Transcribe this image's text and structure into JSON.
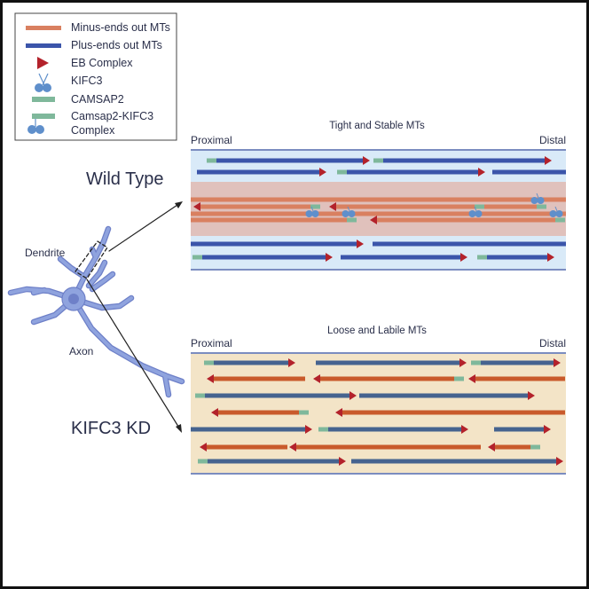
{
  "legend": {
    "items": [
      {
        "label": "Minus-ends out MTs",
        "icon": "minus-end-mt-bar"
      },
      {
        "label": "Plus-ends out MTs",
        "icon": "plus-end-mt-bar"
      },
      {
        "label": "EB Complex",
        "icon": "eb-triangle"
      },
      {
        "label": "KIFC3",
        "icon": "kifc3-motor"
      },
      {
        "label": "CAMSAP2",
        "icon": "camsap2-bar"
      },
      {
        "label": "Camsap2-KIFC3",
        "label2": "Complex",
        "icon": "camsap2-kifc3-complex"
      }
    ]
  },
  "neuron": {
    "dendrite_label": "Dendrite",
    "axon_label": "Axon"
  },
  "wild_type": {
    "label": "Wild Type",
    "panel_title": "Tight and Stable MTs",
    "proximal": "Proximal",
    "distal": "Distal"
  },
  "knockdown": {
    "label": "KIFC3 KD",
    "panel_title": "Loose and Labile MTs",
    "proximal": "Proximal",
    "distal": "Distal"
  },
  "colors": {
    "minus_mt": "#d98060",
    "plus_mt": "#3b55aa",
    "plus_mt_kd": "#46638f",
    "minus_mt_kd": "#c95a2b",
    "eb": "#b3222b",
    "camsap2": "#7fb89b",
    "kifc3": "#5f8fcb",
    "wt_bg": "#d9eaf8",
    "wt_band": "#e0c1bc",
    "kd_bg": "#f3e4c7",
    "neuron": "#8fa3de"
  }
}
